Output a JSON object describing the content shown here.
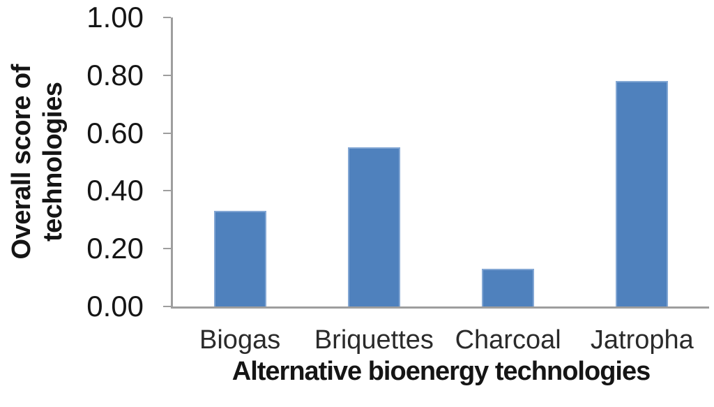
{
  "chart_data": {
    "type": "bar",
    "title": "",
    "categories": [
      "Biogas",
      "Briquettes",
      "Charcoal",
      "Jatropha"
    ],
    "values": [
      0.33,
      0.55,
      0.13,
      0.78
    ],
    "xlabel": "Alternative bioenergy technologies",
    "ylabel": "Overall score of technologies",
    "ylabel_lines": [
      "Overall score of",
      "technologies"
    ],
    "ylim": [
      0,
      1.0
    ],
    "y_ticks": [
      "0.00",
      "0.20",
      "0.40",
      "0.60",
      "0.80",
      "1.00"
    ],
    "y_tick_values": [
      0,
      0.2,
      0.4,
      0.6,
      0.8,
      1.0
    ],
    "grid": false,
    "legend": "none",
    "colors": {
      "bar_fill": "#4f81bd",
      "bar_border": "#83a7d4",
      "axis_line": "#9e9e9e",
      "text": "#151515"
    }
  }
}
